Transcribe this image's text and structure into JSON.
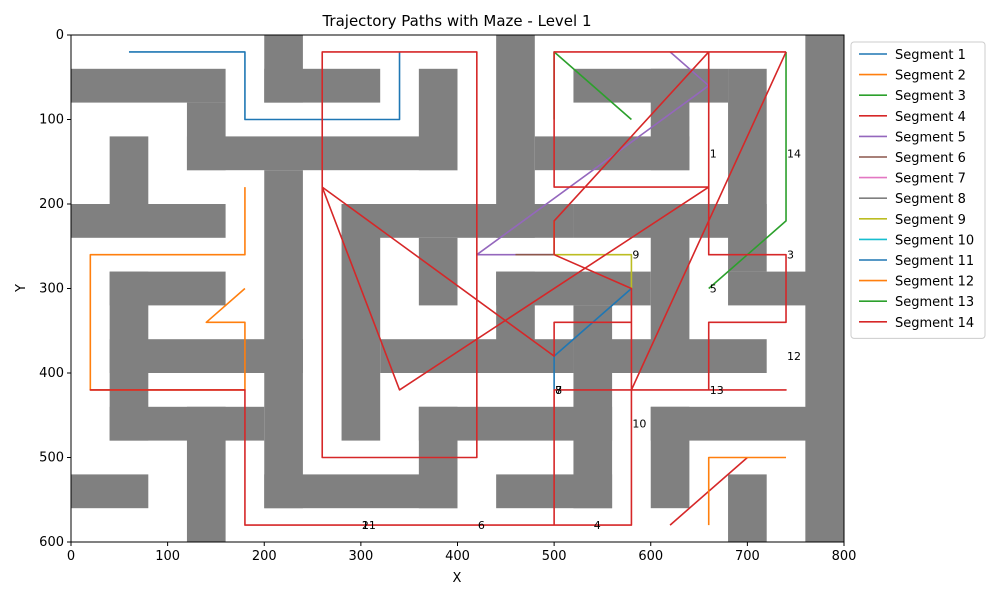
{
  "chart_data": {
    "type": "line",
    "title": "Trajectory Paths with Maze - Level 1",
    "xlabel": "X",
    "ylabel": "Y",
    "xlim": [
      0,
      800
    ],
    "ylim": [
      600,
      0
    ],
    "y_inverted": true,
    "xticks": [
      0,
      100,
      200,
      300,
      400,
      500,
      600,
      700,
      800
    ],
    "yticks": [
      0,
      100,
      200,
      300,
      400,
      500,
      600
    ],
    "grid": false,
    "legend_position": "outside right, top",
    "maze_color": "#808080",
    "maze_cell": 40,
    "maze_walls": [
      [
        0,
        40,
        160,
        40
      ],
      [
        120,
        80,
        40,
        80
      ],
      [
        120,
        120,
        280,
        40
      ],
      [
        40,
        120,
        40,
        80
      ],
      [
        0,
        200,
        160,
        40
      ],
      [
        200,
        0,
        40,
        80
      ],
      [
        200,
        40,
        120,
        40
      ],
      [
        360,
        40,
        40,
        120
      ],
      [
        200,
        160,
        40,
        400
      ],
      [
        200,
        520,
        200,
        40
      ],
      [
        440,
        0,
        40,
        240
      ],
      [
        280,
        200,
        240,
        40
      ],
      [
        280,
        200,
        40,
        280
      ],
      [
        360,
        240,
        40,
        80
      ],
      [
        480,
        120,
        160,
        40
      ],
      [
        520,
        40,
        160,
        40
      ],
      [
        600,
        40,
        40,
        120
      ],
      [
        680,
        40,
        40,
        240
      ],
      [
        520,
        200,
        200,
        40
      ],
      [
        600,
        200,
        40,
        200
      ],
      [
        440,
        280,
        160,
        40
      ],
      [
        440,
        280,
        40,
        120
      ],
      [
        320,
        360,
        200,
        40
      ],
      [
        520,
        320,
        40,
        240
      ],
      [
        520,
        360,
        200,
        40
      ],
      [
        40,
        280,
        40,
        200
      ],
      [
        40,
        280,
        120,
        40
      ],
      [
        40,
        360,
        200,
        40
      ],
      [
        40,
        440,
        160,
        40
      ],
      [
        120,
        440,
        40,
        160
      ],
      [
        0,
        520,
        80,
        40
      ],
      [
        360,
        440,
        200,
        40
      ],
      [
        360,
        440,
        40,
        120
      ],
      [
        440,
        520,
        120,
        40
      ],
      [
        600,
        440,
        200,
        40
      ],
      [
        600,
        440,
        40,
        120
      ],
      [
        680,
        520,
        40,
        80
      ],
      [
        680,
        280,
        120,
        40
      ],
      [
        760,
        0,
        40,
        600
      ]
    ],
    "series": [
      {
        "name": "Segment 1",
        "color": "#1f77b4",
        "x": [
          60,
          180,
          180,
          340,
          340
        ],
        "y": [
          20,
          20,
          100,
          100,
          20
        ]
      },
      {
        "name": "Segment 2",
        "color": "#ff7f0e",
        "x": [
          180,
          180,
          20,
          20,
          180,
          180,
          140,
          180
        ],
        "y": [
          180,
          260,
          260,
          420,
          420,
          340,
          340,
          300
        ]
      },
      {
        "name": "Segment 3",
        "color": "#2ca02c",
        "x": [
          500,
          500,
          580
        ],
        "y": [
          100,
          20,
          100
        ]
      },
      {
        "name": "Segment 4",
        "color": "#d62728",
        "x": [
          620,
          700
        ],
        "y": [
          580,
          500
        ]
      },
      {
        "name": "Segment 5",
        "color": "#9467bd",
        "x": [
          620,
          660,
          420,
          500
        ],
        "y": [
          20,
          60,
          260,
          260
        ]
      },
      {
        "name": "Segment 6",
        "color": "#8c564b",
        "x": [
          460,
          500
        ],
        "y": [
          260,
          260
        ]
      },
      {
        "name": "Segment 7",
        "color": "#e377c2",
        "x": [],
        "y": []
      },
      {
        "name": "Segment 8",
        "color": "#7f7f7f",
        "x": [],
        "y": []
      },
      {
        "name": "Segment 9",
        "color": "#bcbd22",
        "x": [
          500,
          500,
          580,
          580
        ],
        "y": [
          220,
          260,
          260,
          300
        ]
      },
      {
        "name": "Segment 10",
        "color": "#17becf",
        "x": [],
        "y": []
      },
      {
        "name": "Segment 11",
        "color": "#1f77b4",
        "x": [
          580,
          500,
          500
        ],
        "y": [
          300,
          380,
          420
        ]
      },
      {
        "name": "Segment 12",
        "color": "#ff7f0e",
        "x": [
          660,
          660,
          740
        ],
        "y": [
          580,
          500,
          500
        ]
      },
      {
        "name": "Segment 13",
        "color": "#2ca02c",
        "x": [
          660,
          740,
          740
        ],
        "y": [
          300,
          220,
          20
        ]
      },
      {
        "name": "Segment 14",
        "color": "#d62728",
        "x": [
          740,
          500,
          500,
          580,
          660,
          660,
          740,
          740,
          660,
          660,
          740,
          740,
          580,
          580,
          180,
          180,
          20,
          180,
          180,
          500,
          500,
          580,
          580,
          500,
          500,
          260,
          260,
          420,
          420,
          260,
          260,
          340,
          340,
          660,
          660,
          500,
          500,
          580,
          580,
          740,
          740
        ],
        "y": [
          20,
          20,
          180,
          180,
          180,
          260,
          260,
          340,
          340,
          420,
          420,
          420,
          420,
          580,
          580,
          420,
          420,
          420,
          580,
          580,
          420,
          420,
          340,
          340,
          380,
          180,
          500,
          500,
          20,
          20,
          180,
          420,
          420,
          180,
          20,
          220,
          260,
          300,
          420,
          20,
          20
        ]
      }
    ],
    "annotations": [
      {
        "text": "1",
        "x": 660,
        "y": 140
      },
      {
        "text": "14",
        "x": 740,
        "y": 140
      },
      {
        "text": "9",
        "x": 580,
        "y": 260
      },
      {
        "text": "3",
        "x": 740,
        "y": 260
      },
      {
        "text": "5",
        "x": 660,
        "y": 300
      },
      {
        "text": "12",
        "x": 740,
        "y": 380
      },
      {
        "text": "7",
        "x": 500,
        "y": 420
      },
      {
        "text": "8",
        "x": 500,
        "y": 420
      },
      {
        "text": "13",
        "x": 660,
        "y": 420
      },
      {
        "text": "10",
        "x": 580,
        "y": 460
      },
      {
        "text": "2",
        "x": 300,
        "y": 580
      },
      {
        "text": "11",
        "x": 300,
        "y": 580
      },
      {
        "text": "6",
        "x": 420,
        "y": 580
      },
      {
        "text": "4",
        "x": 540,
        "y": 580
      }
    ]
  }
}
